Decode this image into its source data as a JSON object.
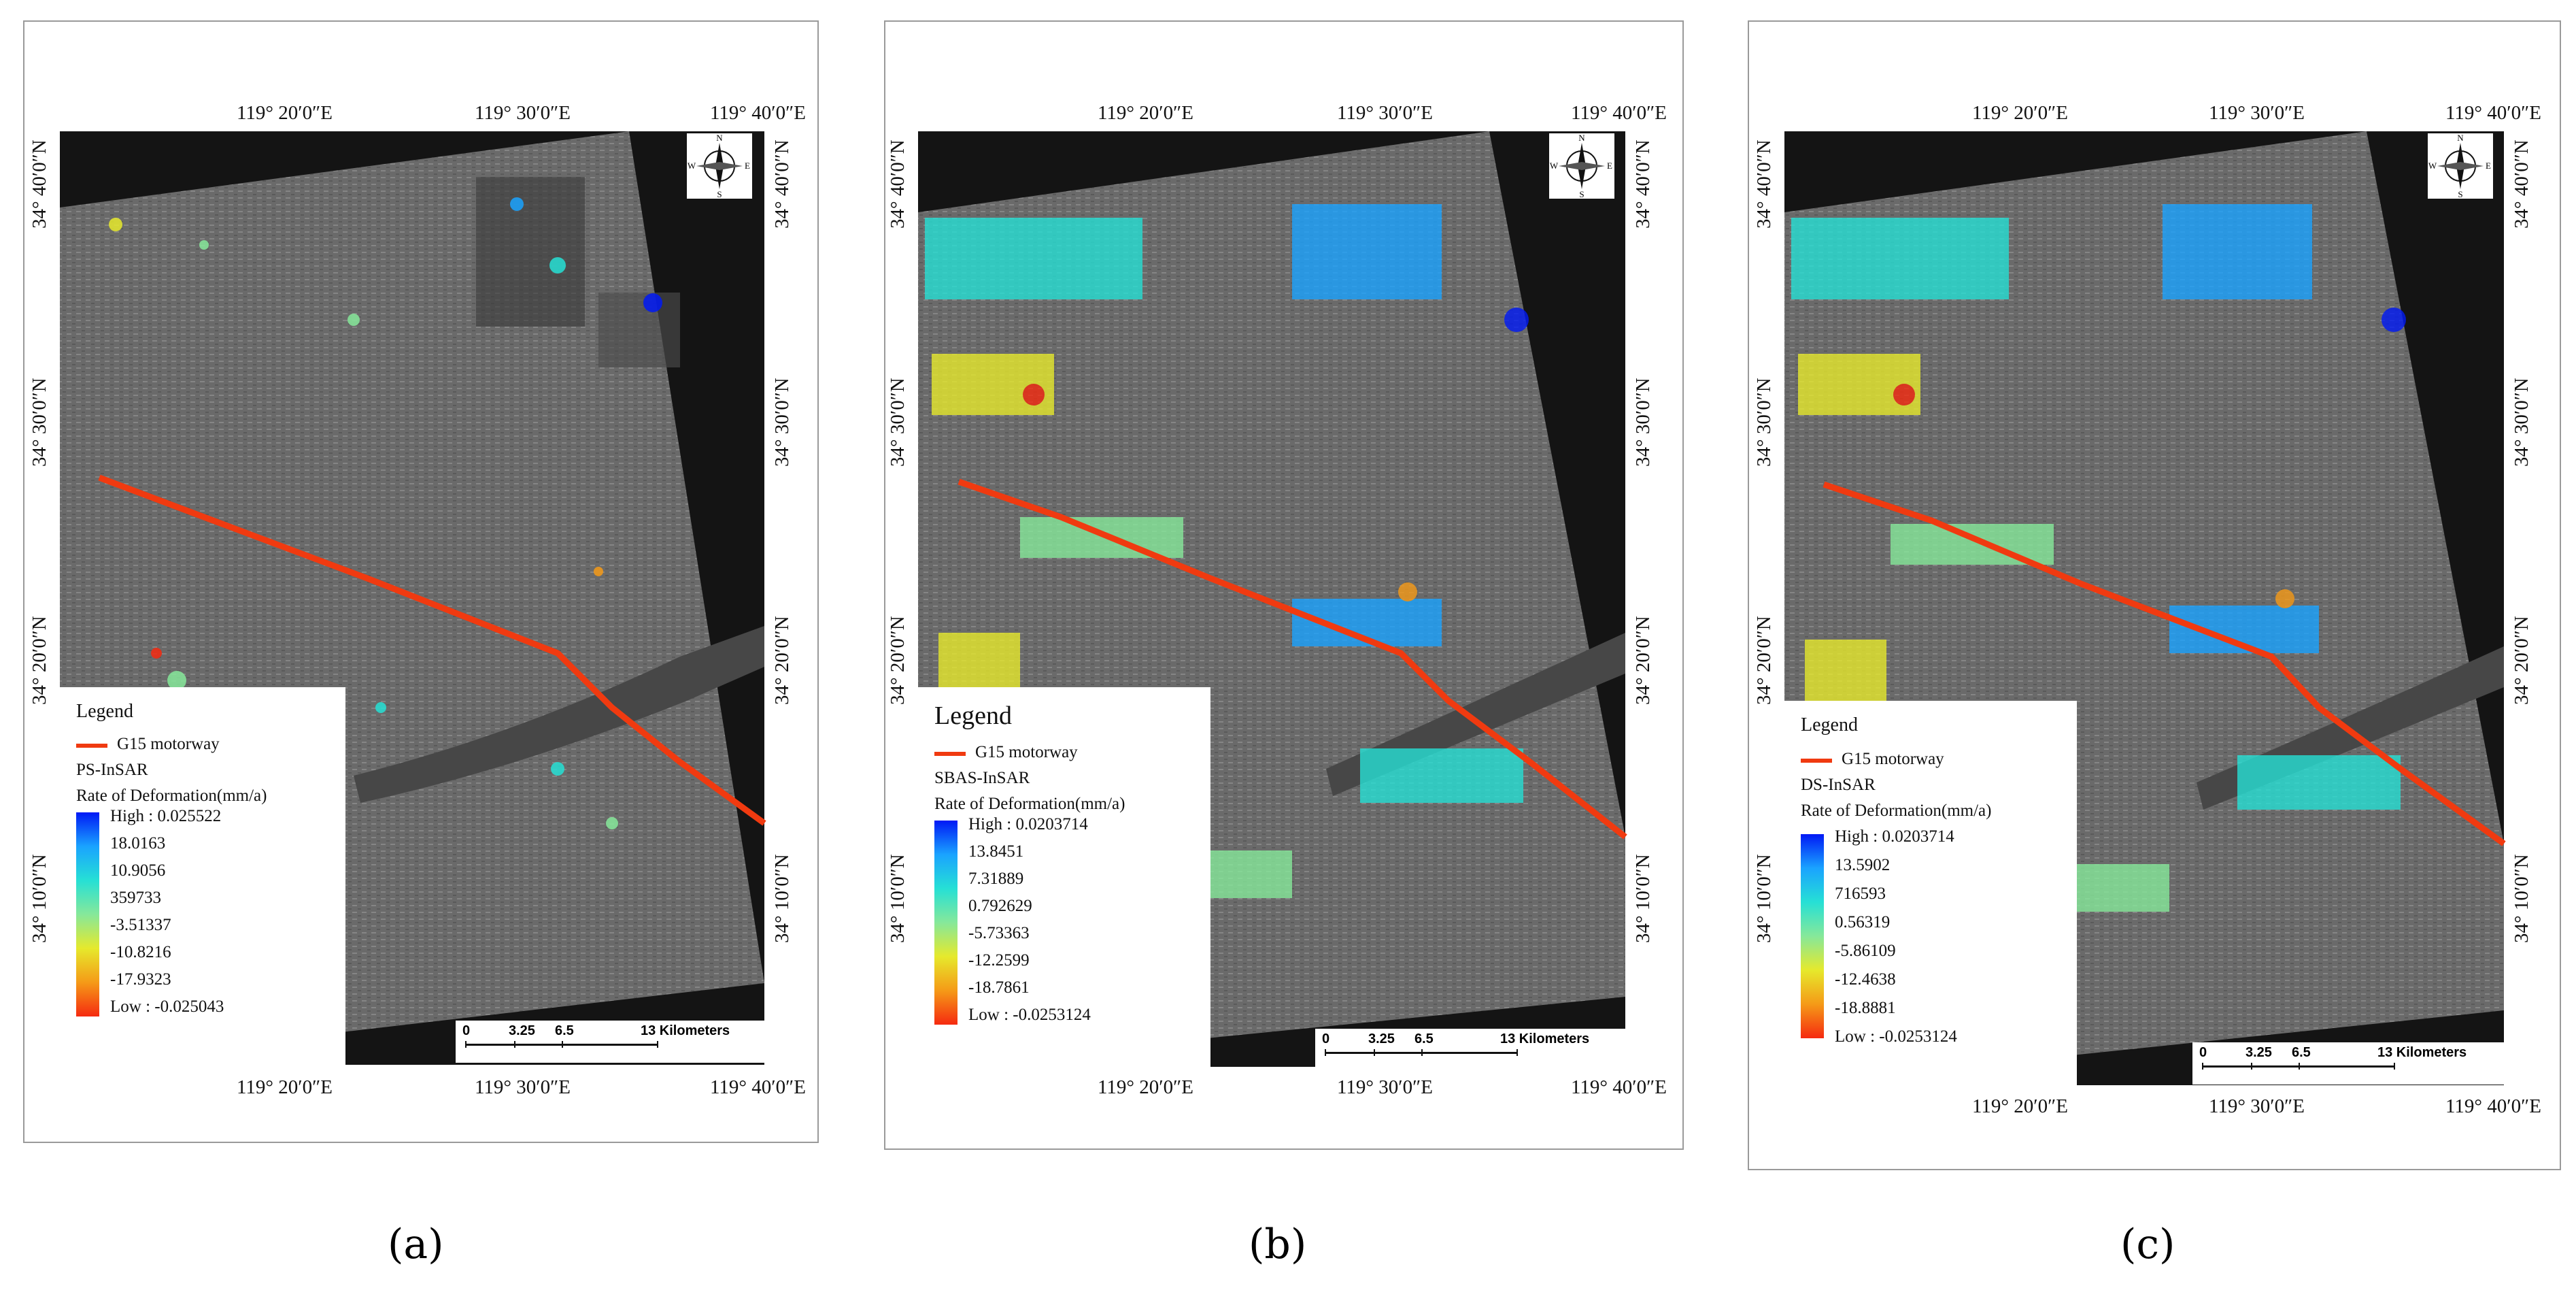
{
  "colors": {
    "background": "#ffffff",
    "frame_border": "#9a9a9a",
    "imagery_black": "#141414",
    "imagery_gray": "#6e6e6e",
    "motorway": "#f03a10",
    "river": "#4a4a4a",
    "ramp": [
      "#0019f5",
      "#1aa3ff",
      "#26e0d5",
      "#86e89a",
      "#e6e92c",
      "#f59a17",
      "#f52a10"
    ]
  },
  "panels": [
    {
      "caption": "(a)",
      "lon_ticks_top": [
        "119° 20′0″E",
        "119° 30′0″E",
        "119° 40′0″E"
      ],
      "lon_ticks_bottom": [
        "119° 20′0″E",
        "119° 30′0″E",
        "119° 40′0″E"
      ],
      "lat_ticks_left": [
        "34° 40′0″N",
        "34° 30′0″N",
        "34° 20′0″N",
        "34° 10′0″N"
      ],
      "lat_ticks_right": [
        "34° 40′0″N",
        "34° 30′0″N",
        "34° 20′0″N",
        "34° 10′0″N"
      ],
      "north_arrow": {
        "n": "N",
        "s": "S",
        "e": "E",
        "w": "W",
        "icon": "compass-rose-icon"
      },
      "legend": {
        "title": "Legend",
        "road_label": "G15 motorway",
        "method": "PS-InSAR",
        "field": "Rate of Deformation(mm/a)",
        "values": [
          "High : 0.025522",
          "18.0163",
          "10.9056",
          "359733",
          "-3.51337",
          "-10.8216",
          "-17.9323",
          "Low : -0.025043"
        ]
      },
      "scale": {
        "labels": [
          "0",
          "3.25",
          "6.5",
          "13 Kilometers"
        ]
      }
    },
    {
      "caption": "(b)",
      "lon_ticks_top": [
        "119° 20′0″E",
        "119° 30′0″E",
        "119° 40′0″E"
      ],
      "lon_ticks_bottom": [
        "119° 20′0″E",
        "119° 30′0″E",
        "119° 40′0″E"
      ],
      "lat_ticks_left": [
        "34° 40′0″N",
        "34° 30′0″N",
        "34° 20′0″N",
        "34° 10′0″N"
      ],
      "lat_ticks_right": [
        "34° 40′0″N",
        "34° 30′0″N",
        "34° 20′0″N",
        "34° 10′0″N"
      ],
      "north_arrow": {
        "n": "N",
        "s": "S",
        "e": "E",
        "w": "W",
        "icon": "compass-rose-icon"
      },
      "legend": {
        "title": "Legend",
        "road_label": "G15 motorway",
        "method": "SBAS-InSAR",
        "field": "Rate of Deformation(mm/a)",
        "values": [
          "High : 0.0203714",
          "13.8451",
          "7.31889",
          "0.792629",
          "-5.73363",
          "-12.2599",
          "-18.7861",
          "Low : -0.0253124"
        ]
      },
      "scale": {
        "labels": [
          "0",
          "3.25",
          "6.5",
          "13 Kilometers"
        ]
      }
    },
    {
      "caption": "(c)",
      "lon_ticks_top": [
        "119° 20′0″E",
        "119° 30′0″E",
        "119° 40′0″E"
      ],
      "lon_ticks_bottom": [
        "119° 20′0″E",
        "119° 30′0″E",
        "119° 40′0″E"
      ],
      "lat_ticks_left": [
        "34° 40′0″N",
        "34° 30′0″N",
        "34° 20′0″N",
        "34° 10′0″N"
      ],
      "lat_ticks_right": [
        "34° 40′0″N",
        "34° 30′0″N",
        "34° 20′0″N",
        "34° 10′0″N"
      ],
      "north_arrow": {
        "n": "N",
        "s": "S",
        "e": "E",
        "w": "W",
        "icon": "compass-rose-icon"
      },
      "legend": {
        "title": "Legend",
        "road_label": "G15 motorway",
        "method": "DS-InSAR",
        "field": "Rate of Deformation(mm/a)",
        "values": [
          "High : 0.0203714",
          "13.5902",
          "716593",
          "0.56319",
          "-5.86109",
          "-12.4638",
          "-18.8881",
          "Low : -0.0253124"
        ]
      },
      "scale": {
        "labels": [
          "0",
          "3.25",
          "6.5",
          "13 Kilometers"
        ]
      }
    }
  ]
}
